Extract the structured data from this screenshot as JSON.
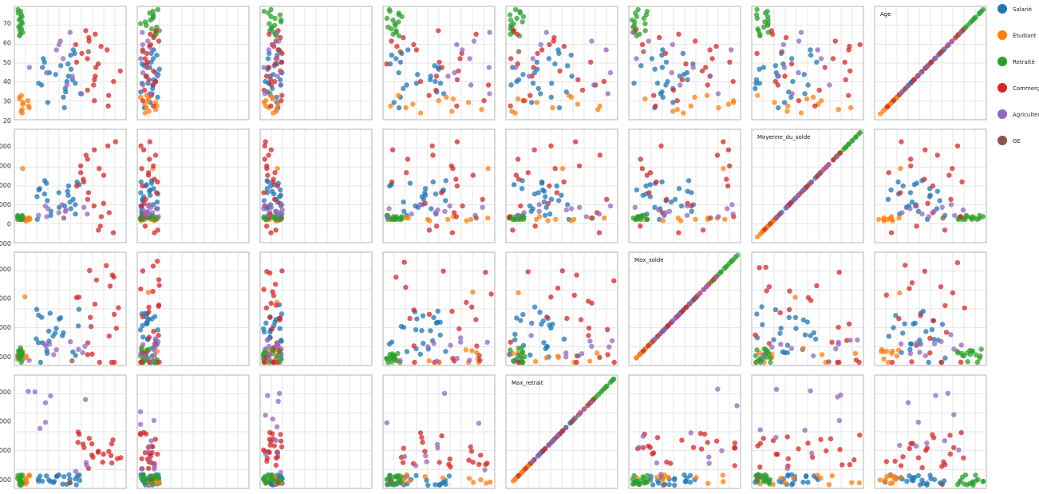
{
  "chart_data": {
    "type": "scatter",
    "title": "",
    "grid": true,
    "legend_position": "right",
    "rows": [
      {
        "variable": "Age",
        "tick_labels": [
          "70",
          "60",
          "50",
          "40",
          "30",
          "20"
        ],
        "ylim": [
          17,
          78
        ]
      },
      {
        "variable": "Moyenne_du_solde",
        "tick_labels": [
          "000",
          "000",
          "000",
          "000",
          "0",
          "000"
        ],
        "ylim": [
          -1.5,
          6.5
        ]
      },
      {
        "variable": "Max_solde",
        "tick_labels": [
          "000",
          "000",
          "000",
          "000"
        ],
        "ylim": [
          0,
          10
        ]
      },
      {
        "variable": "Max_retrait",
        "tick_labels": [
          "000",
          "000",
          "000",
          "000"
        ],
        "ylim": [
          0,
          10
        ]
      }
    ],
    "diagonal_labels": [
      {
        "row": 0,
        "col": 7,
        "label": "Age"
      },
      {
        "row": 1,
        "col": 6,
        "label": "Moyenne_du_solde"
      },
      {
        "row": 2,
        "col": 5,
        "label": "Max_solde"
      },
      {
        "row": 3,
        "col": 4,
        "label": "Max_retrait"
      }
    ],
    "legend": [
      {
        "name": "Salarié",
        "color": "#1f77b4"
      },
      {
        "name": "Étudiant",
        "color": "#ff7f0e"
      },
      {
        "name": "Retraité",
        "color": "#2ca02c"
      },
      {
        "name": "Commerça",
        "color": "#d62728"
      },
      {
        "name": "Agriculteu",
        "color": "#9467bd"
      },
      {
        "name": "GE",
        "color": "#8c564b"
      }
    ],
    "series": [
      {
        "name": "Salarié",
        "color": "#1f77b4",
        "Age": [
          22,
          25,
          28,
          30,
          31,
          33,
          35,
          36,
          37,
          38,
          40,
          42,
          44,
          45,
          46,
          48,
          50,
          52,
          53,
          55,
          36,
          41,
          47
        ],
        "Moyenne_du_solde": [
          1.5,
          2.2,
          2.8,
          1.9,
          0.4,
          2.5,
          0.9,
          1.3,
          2.0,
          2.6,
          1.1,
          0.6,
          2.9,
          0.0,
          1.7,
          2.3,
          0.8,
          1.4,
          2.1,
          0.3,
          1.0,
          2.7,
          1.8
        ]
      },
      {
        "name": "Étudiant",
        "color": "#ff7f0e",
        "Age": [
          19,
          20,
          21,
          22,
          23,
          24,
          25,
          26,
          27,
          28,
          29
        ],
        "Moyenne_du_solde": [
          0.0,
          0.1,
          0.0,
          -0.1,
          0.1,
          0.0,
          0.2,
          0.0,
          -0.1,
          0.1,
          3.8
        ]
      },
      {
        "name": "Retraité",
        "color": "#2ca02c",
        "Age": [
          63,
          64,
          65,
          66,
          67,
          68,
          69,
          70,
          71,
          72,
          73,
          74,
          75,
          76,
          77,
          78
        ],
        "Moyenne_du_solde": [
          0.0,
          0.1,
          0.2,
          0.0,
          0.1,
          0.3,
          0.0,
          0.2,
          0.1,
          0.0,
          0.2,
          0.1,
          0.0,
          0.3,
          0.1,
          0.2
        ]
      },
      {
        "name": "Commerça",
        "color": "#d62728",
        "Age": [
          23,
          26,
          29,
          32,
          35,
          38,
          40,
          43,
          45,
          48,
          50,
          53,
          55,
          58,
          60,
          62,
          64,
          66,
          37,
          47,
          57
        ],
        "Moyenne_du_solde": [
          3.5,
          -1.0,
          2.0,
          5.8,
          4.0,
          -0.5,
          1.0,
          3.0,
          5.2,
          0.5,
          2.5,
          4.8,
          -0.8,
          1.5,
          3.8,
          5.5,
          0.2,
          2.8,
          4.5,
          1.2,
          3.3
        ]
      },
      {
        "name": "Agriculteu",
        "color": "#9467bd",
        "Age": [
          30,
          35,
          40,
          45,
          50,
          55,
          60,
          65,
          42,
          58
        ],
        "Moyenne_du_solde": [
          0.5,
          0.8,
          1.0,
          0.2,
          0.6,
          0.9,
          0.3,
          0.7,
          0.4,
          1.1
        ]
      },
      {
        "name": "GE",
        "color": "#8c564b",
        "Age": [
          54
        ],
        "Moyenne_du_solde": [
          0.1
        ]
      }
    ]
  }
}
